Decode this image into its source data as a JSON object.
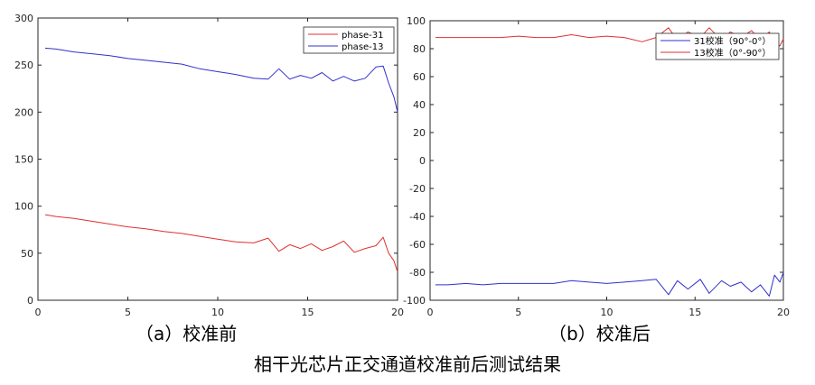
{
  "chart_data": [
    {
      "type": "line",
      "xlim": [
        0,
        20
      ],
      "ylim": [
        0,
        300
      ],
      "xticks": [
        0,
        5,
        10,
        15,
        20
      ],
      "yticks": [
        0,
        50,
        100,
        150,
        200,
        250,
        300
      ],
      "grid": false,
      "legend_position": "top-right",
      "series": [
        {
          "name": "phase-31",
          "color": "#e03030",
          "x": [
            0.4,
            1,
            2,
            3,
            4,
            5,
            6,
            7,
            8,
            9,
            10,
            11,
            12,
            12.8,
            13.4,
            14,
            14.6,
            15.2,
            15.8,
            16.4,
            17,
            17.6,
            18.2,
            18.8,
            19.2,
            19.5,
            19.8,
            20
          ],
          "y": [
            91,
            89,
            87,
            84,
            81,
            78,
            76,
            73,
            71,
            68,
            65,
            62,
            61,
            66,
            52,
            59,
            55,
            60,
            53,
            57,
            63,
            51,
            55,
            58,
            67,
            50,
            42,
            30
          ]
        },
        {
          "name": "phase-13",
          "color": "#3030d0",
          "x": [
            0.4,
            1,
            2,
            3,
            4,
            5,
            6,
            7,
            8,
            9,
            10,
            11,
            12,
            12.8,
            13.4,
            14,
            14.6,
            15.2,
            15.8,
            16.4,
            17,
            17.6,
            18.2,
            18.8,
            19.2,
            19.5,
            19.8,
            20
          ],
          "y": [
            268,
            267,
            264,
            262,
            260,
            257,
            255,
            253,
            251,
            246,
            243,
            240,
            236,
            235,
            246,
            235,
            239,
            236,
            242,
            233,
            238,
            233,
            236,
            248,
            249,
            231,
            216,
            200
          ]
        }
      ]
    },
    {
      "type": "line",
      "xlim": [
        0,
        20
      ],
      "ylim": [
        -100,
        100
      ],
      "xticks": [
        0,
        5,
        10,
        15,
        20
      ],
      "yticks": [
        -100,
        -80,
        -60,
        -40,
        -20,
        0,
        20,
        40,
        60,
        80,
        100
      ],
      "grid": false,
      "legend_position": "top-right",
      "series": [
        {
          "name": "31校准（90°-0°）",
          "color": "#3030d0",
          "x": [
            0.3,
            1,
            2,
            3,
            4,
            5,
            6,
            7,
            8,
            9,
            10,
            11,
            12,
            12.8,
            13.5,
            14,
            14.6,
            15.3,
            15.8,
            16.5,
            17,
            17.6,
            18.2,
            18.7,
            19.2,
            19.5,
            19.8,
            20
          ],
          "y": [
            -89,
            -89,
            -88,
            -89,
            -88,
            -88,
            -88,
            -88,
            -86,
            -87,
            -88,
            -87,
            -86,
            -85,
            -96,
            -86,
            -92,
            -85,
            -95,
            -86,
            -90,
            -87,
            -94,
            -89,
            -97,
            -82,
            -87,
            -80
          ]
        },
        {
          "name": "13校准（0°-90°）",
          "color": "#e03030",
          "x": [
            0.3,
            1,
            2,
            3,
            4,
            5,
            6,
            7,
            8,
            9,
            10,
            11,
            12,
            12.8,
            13.5,
            14,
            14.6,
            15.3,
            15.8,
            16.5,
            17,
            17.6,
            18.2,
            18.7,
            19.2,
            19.5,
            19.8,
            20
          ],
          "y": [
            88,
            88,
            88,
            88,
            88,
            89,
            88,
            88,
            90,
            88,
            89,
            88,
            85,
            88,
            95,
            86,
            92,
            88,
            95,
            86,
            92,
            88,
            93,
            86,
            92,
            84,
            82,
            87
          ]
        }
      ]
    }
  ],
  "captions": {
    "a": "（a）校准前",
    "b": "（b）校准后",
    "main": "相干光芯片正交通道校准前后测试结果"
  }
}
